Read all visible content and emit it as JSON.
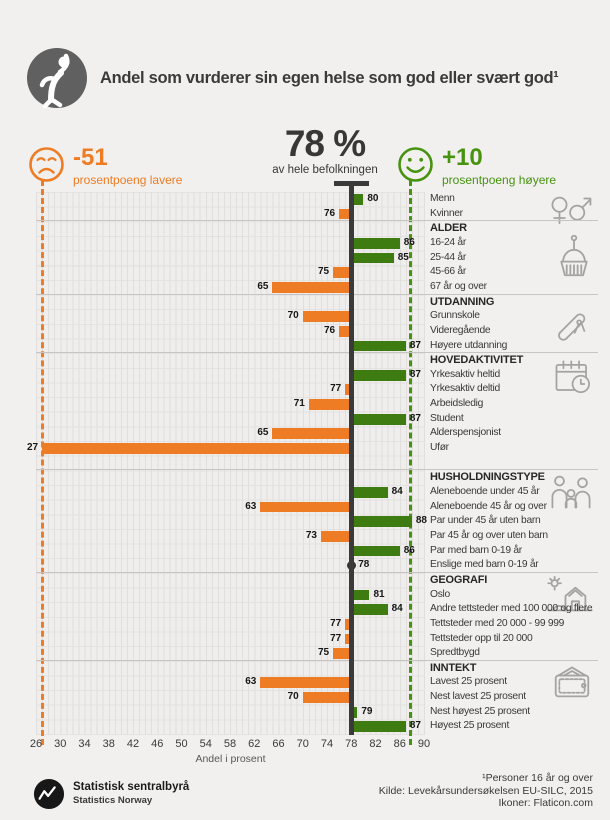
{
  "header": {
    "title": "Andel som vurderer sin egen helse som god eller svært god¹"
  },
  "stats": {
    "lower": {
      "value": "-51",
      "label": "prosentpoeng lavere",
      "color": "#ee7c24"
    },
    "total": {
      "value": "78 %",
      "label": "av hele befolkningen"
    },
    "higher": {
      "value": "+10",
      "label": "prosentpoeng høyere",
      "color": "#479310"
    }
  },
  "chart_data": {
    "type": "bar",
    "variant": "diverging-horizontal",
    "baseline": 78,
    "axis": {
      "min": 26,
      "max": 90,
      "ticks": [
        26,
        30,
        34,
        38,
        42,
        46,
        50,
        54,
        58,
        62,
        66,
        70,
        74,
        78,
        82,
        86,
        90
      ],
      "label": "Andel i prosent"
    },
    "colors": {
      "above_baseline": "#3e7b11",
      "below_baseline": "#ee7c24",
      "accent_green": "#479310",
      "accent_orange": "#ee7c24"
    },
    "sections": [
      {
        "header": null,
        "icon": "gender-icon",
        "rows": [
          {
            "label": "Menn",
            "value": 80
          },
          {
            "label": "Kvinner",
            "value": 76
          }
        ]
      },
      {
        "header": "ALDER",
        "icon": "birthday-cake-icon",
        "rows": [
          {
            "label": "16-24 år",
            "value": 86
          },
          {
            "label": "25-44 år",
            "value": 85
          },
          {
            "label": "45-66 år",
            "value": 75
          },
          {
            "label": "67 år og over",
            "value": 65
          }
        ]
      },
      {
        "header": "UTDANNING",
        "icon": "diploma-icon",
        "rows": [
          {
            "label": "Grunnskole",
            "value": 70
          },
          {
            "label": "Videregående",
            "value": 76
          },
          {
            "label": "Høyere utdanning",
            "value": 87
          }
        ]
      },
      {
        "header": "HOVEDAKTIVITET",
        "icon": "calendar-clock-icon",
        "rows": [
          {
            "label": "Yrkesaktiv heltid",
            "value": 87
          },
          {
            "label": "Yrkesaktiv deltid",
            "value": 77
          },
          {
            "label": "Arbeidsledig",
            "value": 71
          },
          {
            "label": "Student",
            "value": 87
          },
          {
            "label": "Alderspensjonist",
            "value": 65
          },
          {
            "label": "Ufør",
            "value": 27
          }
        ]
      },
      {
        "header": "HUSHOLDNINGSTYPE",
        "icon": "family-icon",
        "gap_before": 1,
        "rows": [
          {
            "label": "Aleneboende under 45 år",
            "value": 84
          },
          {
            "label": "Aleneboende 45 år og over",
            "value": 63
          },
          {
            "label": "Par under 45 år uten barn",
            "value": 88
          },
          {
            "label": "Par 45 år og over uten barn",
            "value": 73
          },
          {
            "label": "Par med barn 0-19 år",
            "value": 86
          },
          {
            "label": "Enslige med barn 0-19 år",
            "value": 78
          }
        ]
      },
      {
        "header": "GEOGRAFI",
        "icon": "farm-icon",
        "rows": [
          {
            "label": "Oslo",
            "value": 81
          },
          {
            "label": "Andre tettsteder med 100 000 og flere",
            "value": 84
          },
          {
            "label": "Tettsteder med 20 000 - 99 999",
            "value": 77
          },
          {
            "label": "Tettsteder opp til 20 000",
            "value": 77
          },
          {
            "label": "Spredtbygd",
            "value": 75
          }
        ]
      },
      {
        "header": "INNTEKT",
        "icon": "wallet-icon",
        "rows": [
          {
            "label": "Lavest 25 prosent",
            "value": 63
          },
          {
            "label": "Nest lavest 25 prosent",
            "value": 70
          },
          {
            "label": "Nest høyest 25 prosent",
            "value": 79
          },
          {
            "label": "Høyest 25 prosent",
            "value": 87
          }
        ]
      }
    ]
  },
  "footer": {
    "org_name": "Statistisk sentralbyrå",
    "org_name_en": "Statistics Norway",
    "footnote": "¹Personer 16 år og over",
    "source": "Kilde: Levekårsundersøkelsen EU-SILC, 2015",
    "icons_credit": "Ikoner: Flaticon.com"
  }
}
